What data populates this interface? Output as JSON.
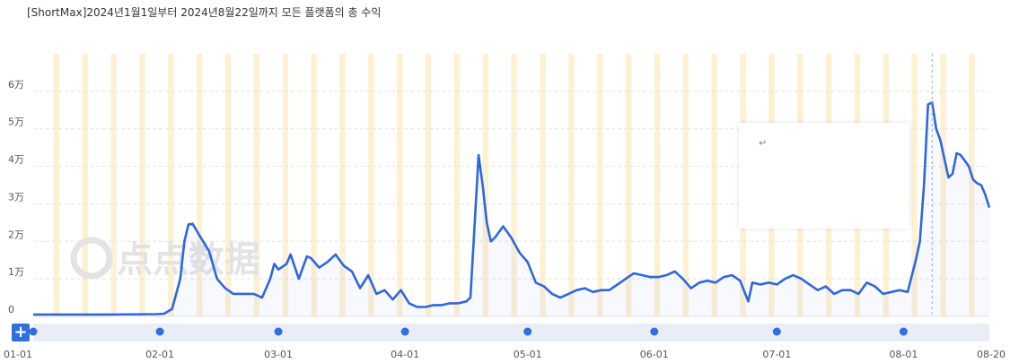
{
  "title": "[ShortMax]2024년1월1일부터 2024년8월22일까지 모든 플랫폼의 총 수익",
  "watermark": "点点数据",
  "tooltip_mark": "↵",
  "zoom_button_label": "+",
  "colors": {
    "line": "#2f66e0",
    "bar": "#fdf1d2",
    "grid": "#e4e4e4",
    "slider": "#e9edf6",
    "handle": "#2f6fe0"
  },
  "chart_data": {
    "type": "line",
    "title": "[ShortMax]2024년1월1일부터 2024년8월22일까지 모든 플랫폼의 총 수익",
    "xlabel": "",
    "ylabel": "",
    "x_range": [
      "2024-01-01",
      "2024-08-22"
    ],
    "ylim": [
      0,
      70000
    ],
    "yticks": [
      0,
      10000,
      20000,
      30000,
      40000,
      50000,
      60000
    ],
    "ytick_labels": [
      "0",
      "1万",
      "2万",
      "3万",
      "4万",
      "5万",
      "6万"
    ],
    "xtick_labels": [
      {
        "date": "2024-01-01",
        "label": "01-01"
      },
      {
        "date": "2024-02-01",
        "label": "02-01"
      },
      {
        "date": "2024-03-01",
        "label": "03-01"
      },
      {
        "date": "2024-04-01",
        "label": "04-01"
      },
      {
        "date": "2024-05-01",
        "label": "05-01"
      },
      {
        "date": "2024-06-01",
        "label": "06-01"
      },
      {
        "date": "2024-07-01",
        "label": "07-01"
      },
      {
        "date": "2024-08-01",
        "label": "08-01"
      },
      {
        "date": "2024-08-20",
        "label": "08-20"
      }
    ],
    "grid": "horizontal",
    "series": [
      {
        "points": [
          [
            "2024-01-01",
            500
          ],
          [
            "2024-01-10",
            500
          ],
          [
            "2024-01-20",
            500
          ],
          [
            "2024-01-31",
            600
          ],
          [
            "2024-02-02",
            700
          ],
          [
            "2024-02-04",
            2000
          ],
          [
            "2024-02-06",
            10000
          ],
          [
            "2024-02-07",
            20000
          ],
          [
            "2024-02-08",
            24500
          ],
          [
            "2024-02-09",
            24700
          ],
          [
            "2024-02-11",
            21000
          ],
          [
            "2024-02-13",
            17500
          ],
          [
            "2024-02-15",
            10000
          ],
          [
            "2024-02-17",
            7500
          ],
          [
            "2024-02-19",
            6000
          ],
          [
            "2024-02-22",
            6000
          ],
          [
            "2024-02-24",
            6000
          ],
          [
            "2024-02-26",
            5000
          ],
          [
            "2024-02-28",
            10000
          ],
          [
            "2024-02-29",
            14000
          ],
          [
            "2024-03-01",
            12500
          ],
          [
            "2024-03-03",
            14000
          ],
          [
            "2024-03-04",
            16500
          ],
          [
            "2024-03-06",
            10000
          ],
          [
            "2024-03-08",
            16000
          ],
          [
            "2024-03-09",
            15500
          ],
          [
            "2024-03-11",
            13000
          ],
          [
            "2024-03-13",
            14500
          ],
          [
            "2024-03-15",
            16500
          ],
          [
            "2024-03-17",
            13500
          ],
          [
            "2024-03-19",
            12000
          ],
          [
            "2024-03-21",
            7500
          ],
          [
            "2024-03-23",
            11000
          ],
          [
            "2024-03-25",
            6000
          ],
          [
            "2024-03-27",
            7000
          ],
          [
            "2024-03-29",
            4500
          ],
          [
            "2024-03-31",
            7000
          ],
          [
            "2024-04-02",
            3500
          ],
          [
            "2024-04-04",
            2500
          ],
          [
            "2024-04-06",
            2500
          ],
          [
            "2024-04-08",
            3000
          ],
          [
            "2024-04-10",
            3000
          ],
          [
            "2024-04-12",
            3500
          ],
          [
            "2024-04-14",
            3500
          ],
          [
            "2024-04-16",
            4000
          ],
          [
            "2024-04-17",
            5000
          ],
          [
            "2024-04-19",
            43000
          ],
          [
            "2024-04-20",
            35000
          ],
          [
            "2024-04-21",
            25000
          ],
          [
            "2024-04-22",
            20000
          ],
          [
            "2024-04-23",
            21000
          ],
          [
            "2024-04-25",
            24000
          ],
          [
            "2024-04-27",
            21000
          ],
          [
            "2024-04-29",
            17000
          ],
          [
            "2024-05-01",
            14500
          ],
          [
            "2024-05-03",
            9000
          ],
          [
            "2024-05-05",
            8000
          ],
          [
            "2024-05-07",
            6000
          ],
          [
            "2024-05-09",
            5000
          ],
          [
            "2024-05-11",
            6000
          ],
          [
            "2024-05-13",
            7000
          ],
          [
            "2024-05-15",
            7500
          ],
          [
            "2024-05-17",
            6500
          ],
          [
            "2024-05-19",
            7000
          ],
          [
            "2024-05-21",
            7000
          ],
          [
            "2024-05-23",
            8500
          ],
          [
            "2024-05-25",
            10000
          ],
          [
            "2024-05-27",
            11500
          ],
          [
            "2024-05-29",
            11000
          ],
          [
            "2024-05-31",
            10500
          ],
          [
            "2024-06-02",
            10500
          ],
          [
            "2024-06-04",
            11000
          ],
          [
            "2024-06-06",
            12000
          ],
          [
            "2024-06-08",
            10000
          ],
          [
            "2024-06-10",
            7500
          ],
          [
            "2024-06-12",
            9000
          ],
          [
            "2024-06-14",
            9500
          ],
          [
            "2024-06-16",
            9000
          ],
          [
            "2024-06-18",
            10500
          ],
          [
            "2024-06-20",
            11000
          ],
          [
            "2024-06-22",
            9500
          ],
          [
            "2024-06-24",
            4000
          ],
          [
            "2024-06-25",
            9000
          ],
          [
            "2024-06-27",
            8500
          ],
          [
            "2024-06-29",
            9000
          ],
          [
            "2024-07-01",
            8500
          ],
          [
            "2024-07-03",
            10000
          ],
          [
            "2024-07-05",
            11000
          ],
          [
            "2024-07-07",
            10000
          ],
          [
            "2024-07-09",
            8500
          ],
          [
            "2024-07-11",
            7000
          ],
          [
            "2024-07-13",
            8000
          ],
          [
            "2024-07-15",
            6000
          ],
          [
            "2024-07-17",
            7000
          ],
          [
            "2024-07-19",
            7000
          ],
          [
            "2024-07-21",
            6000
          ],
          [
            "2024-07-23",
            9000
          ],
          [
            "2024-07-25",
            8000
          ],
          [
            "2024-07-27",
            6000
          ],
          [
            "2024-07-29",
            6500
          ],
          [
            "2024-07-31",
            7000
          ],
          [
            "2024-08-02",
            6500
          ],
          [
            "2024-08-04",
            15000
          ],
          [
            "2024-08-05",
            20000
          ],
          [
            "2024-08-06",
            35000
          ],
          [
            "2024-08-07",
            56500
          ],
          [
            "2024-08-08",
            57000
          ],
          [
            "2024-08-09",
            50000
          ],
          [
            "2024-08-10",
            47000
          ],
          [
            "2024-08-12",
            37000
          ],
          [
            "2024-08-13",
            38000
          ],
          [
            "2024-08-14",
            43500
          ],
          [
            "2024-08-15",
            43000
          ],
          [
            "2024-08-17",
            40000
          ],
          [
            "2024-08-18",
            36500
          ],
          [
            "2024-08-19",
            35500
          ],
          [
            "2024-08-20",
            35000
          ],
          [
            "2024-08-21",
            32500
          ],
          [
            "2024-08-22",
            29000
          ]
        ]
      }
    ],
    "crosshair_date": "2024-08-08"
  }
}
